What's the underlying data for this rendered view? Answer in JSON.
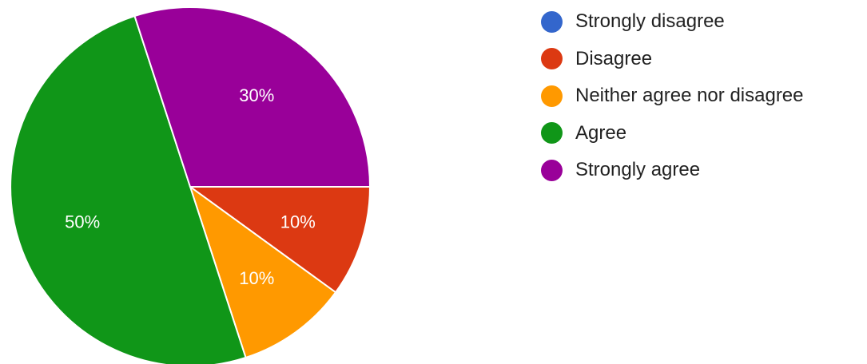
{
  "chart_data": {
    "type": "pie",
    "title": "",
    "start_angle_deg": 0,
    "direction": "clockwise",
    "legend_position": "right",
    "slices": [
      {
        "label": "Strongly disagree",
        "value": 0,
        "display": "",
        "color": "#3366cc"
      },
      {
        "label": "Disagree",
        "value": 10,
        "display": "10%",
        "color": "#dc3912"
      },
      {
        "label": "Neither agree nor disagree",
        "value": 10,
        "display": "10%",
        "color": "#ff9900"
      },
      {
        "label": "Agree",
        "value": 50,
        "display": "50%",
        "color": "#109618"
      },
      {
        "label": "Strongly agree",
        "value": 30,
        "display": "30%",
        "color": "#990099"
      }
    ]
  }
}
